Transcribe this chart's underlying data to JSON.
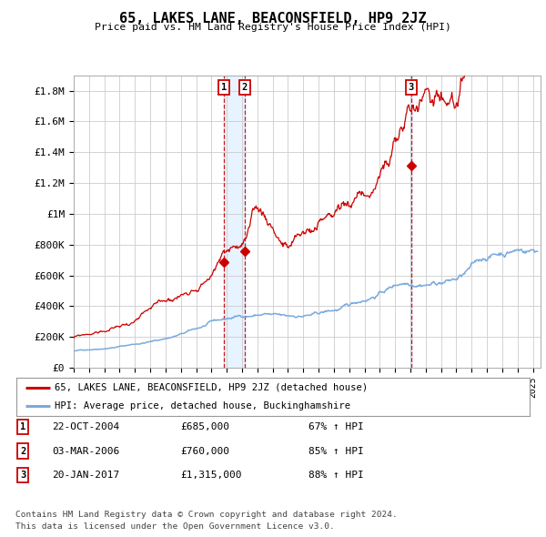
{
  "title": "65, LAKES LANE, BEACONSFIELD, HP9 2JZ",
  "subtitle": "Price paid vs. HM Land Registry's House Price Index (HPI)",
  "ylabel_ticks": [
    "£0",
    "£200K",
    "£400K",
    "£600K",
    "£800K",
    "£1M",
    "£1.2M",
    "£1.4M",
    "£1.6M",
    "£1.8M"
  ],
  "ytick_values": [
    0,
    200000,
    400000,
    600000,
    800000,
    1000000,
    1200000,
    1400000,
    1600000,
    1800000
  ],
  "ylim": [
    0,
    1900000
  ],
  "xlim_start": 1995.0,
  "xlim_end": 2025.5,
  "red_line_color": "#cc0000",
  "blue_line_color": "#7aaadd",
  "shading_color": "#ddeeff",
  "transaction_dates": [
    2004.81,
    2006.17,
    2017.05
  ],
  "transaction_values": [
    685000,
    760000,
    1315000
  ],
  "transaction_labels": [
    "1",
    "2",
    "3"
  ],
  "legend_red_label": "65, LAKES LANE, BEACONSFIELD, HP9 2JZ (detached house)",
  "legend_blue_label": "HPI: Average price, detached house, Buckinghamshire",
  "table_rows": [
    {
      "num": "1",
      "date": "22-OCT-2004",
      "price": "£685,000",
      "hpi": "67% ↑ HPI"
    },
    {
      "num": "2",
      "date": "03-MAR-2006",
      "price": "£760,000",
      "hpi": "85% ↑ HPI"
    },
    {
      "num": "3",
      "date": "20-JAN-2017",
      "price": "£1,315,000",
      "hpi": "88% ↑ HPI"
    }
  ],
  "footnote1": "Contains HM Land Registry data © Crown copyright and database right 2024.",
  "footnote2": "This data is licensed under the Open Government Licence v3.0.",
  "background_color": "#ffffff",
  "grid_color": "#cccccc"
}
